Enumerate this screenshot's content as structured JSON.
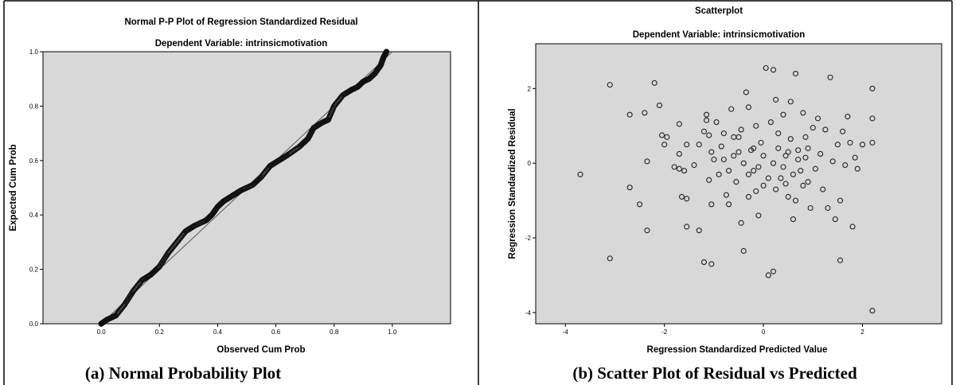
{
  "chart_data": [
    {
      "type": "line",
      "title": "Normal P-P Plot of Regression Standardized Residual",
      "subtitle": "Dependent Variable: intrinsicmotivation",
      "xlabel": "Observed Cum Prob",
      "ylabel": "Expected Cum Prob",
      "xlim": [
        -0.2,
        1.2
      ],
      "ylim": [
        0,
        1
      ],
      "x_ticks": [
        "0.0",
        "0.2",
        "0.4",
        "0.6",
        "0.8",
        "1.0"
      ],
      "y_ticks": [
        "0.0",
        "0.2",
        "0.4",
        "0.6",
        "0.8",
        "1.0"
      ],
      "reference_line": [
        [
          0,
          0
        ],
        [
          1,
          1
        ]
      ],
      "series": [
        {
          "points": [
            [
              0,
              0
            ],
            [
              0.02,
              0.015
            ],
            [
              0.05,
              0.03
            ],
            [
              0.08,
              0.07
            ],
            [
              0.11,
              0.12
            ],
            [
              0.14,
              0.16
            ],
            [
              0.17,
              0.18
            ],
            [
              0.2,
              0.21
            ],
            [
              0.23,
              0.26
            ],
            [
              0.26,
              0.3
            ],
            [
              0.29,
              0.34
            ],
            [
              0.32,
              0.36
            ],
            [
              0.36,
              0.38
            ],
            [
              0.38,
              0.4
            ],
            [
              0.4,
              0.43
            ],
            [
              0.42,
              0.45
            ],
            [
              0.45,
              0.47
            ],
            [
              0.48,
              0.49
            ],
            [
              0.52,
              0.51
            ],
            [
              0.55,
              0.54
            ],
            [
              0.58,
              0.58
            ],
            [
              0.61,
              0.6
            ],
            [
              0.64,
              0.62
            ],
            [
              0.68,
              0.65
            ],
            [
              0.71,
              0.68
            ],
            [
              0.73,
              0.72
            ],
            [
              0.76,
              0.74
            ],
            [
              0.78,
              0.75
            ],
            [
              0.8,
              0.8
            ],
            [
              0.83,
              0.84
            ],
            [
              0.86,
              0.86
            ],
            [
              0.88,
              0.87
            ],
            [
              0.9,
              0.89
            ],
            [
              0.92,
              0.9
            ],
            [
              0.94,
              0.92
            ],
            [
              0.96,
              0.95
            ],
            [
              0.97,
              0.98
            ],
            [
              0.98,
              1.0
            ]
          ]
        }
      ],
      "caption": "(a)  Normal Probability Plot"
    },
    {
      "type": "scatter",
      "title": "Scatterplot",
      "subtitle": "Dependent Variable: intrinsicmotivation",
      "xlabel": "Regression Standardized Predicted Value",
      "ylabel": "Regression Standardized Residual",
      "xlim": [
        -4.6,
        3.6
      ],
      "ylim": [
        -4.3,
        3.2
      ],
      "x_ticks": [
        -4,
        -2,
        0,
        2
      ],
      "y_ticks": [
        -4,
        -2,
        0,
        2
      ],
      "series": [
        {
          "points": [
            [
              -3.7,
              -0.3
            ],
            [
              -3.1,
              2.1
            ],
            [
              -3.1,
              -2.55
            ],
            [
              -2.7,
              1.3
            ],
            [
              -2.7,
              -0.65
            ],
            [
              -2.5,
              -1.1
            ],
            [
              -2.4,
              1.35
            ],
            [
              -2.35,
              0.05
            ],
            [
              -2.35,
              -1.8
            ],
            [
              -2.2,
              2.15
            ],
            [
              -2.1,
              1.55
            ],
            [
              -2.05,
              0.75
            ],
            [
              -2.0,
              0.5
            ],
            [
              -1.95,
              0.7
            ],
            [
              -1.8,
              -0.1
            ],
            [
              -1.7,
              -0.15
            ],
            [
              -1.6,
              -0.2
            ],
            [
              -1.7,
              1.05
            ],
            [
              -1.65,
              -0.9
            ],
            [
              -1.55,
              -0.95
            ],
            [
              -1.7,
              0.25
            ],
            [
              -1.55,
              0.5
            ],
            [
              -1.55,
              -1.7
            ],
            [
              -1.4,
              -0.05
            ],
            [
              -1.3,
              0.5
            ],
            [
              -1.2,
              0.85
            ],
            [
              -1.15,
              1.3
            ],
            [
              -1.15,
              1.15
            ],
            [
              -1.1,
              0.75
            ],
            [
              -1.05,
              0.3
            ],
            [
              -1.0,
              0.1
            ],
            [
              -1.1,
              -0.45
            ],
            [
              -1.05,
              -1.1
            ],
            [
              -1.3,
              -1.8
            ],
            [
              -1.2,
              -2.65
            ],
            [
              -1.05,
              -2.7
            ],
            [
              -0.95,
              1.1
            ],
            [
              -0.9,
              -0.3
            ],
            [
              -0.85,
              0.45
            ],
            [
              -0.8,
              0.1
            ],
            [
              -0.75,
              -0.85
            ],
            [
              -0.7,
              -1.1
            ],
            [
              -0.65,
              1.45
            ],
            [
              -0.6,
              0.2
            ],
            [
              -0.55,
              -0.5
            ],
            [
              -0.5,
              0.7
            ],
            [
              -0.45,
              -1.6
            ],
            [
              -0.4,
              -2.35
            ],
            [
              -0.35,
              1.9
            ],
            [
              -0.3,
              1.5
            ],
            [
              -0.3,
              -0.9
            ],
            [
              -0.25,
              0.35
            ],
            [
              -0.2,
              -0.2
            ],
            [
              -0.15,
              1.0
            ],
            [
              -0.1,
              -1.4
            ],
            [
              -0.05,
              0.55
            ],
            [
              0.0,
              -0.6
            ],
            [
              0.05,
              2.55
            ],
            [
              0.1,
              -3.0
            ],
            [
              0.2,
              -2.9
            ],
            [
              0.2,
              2.5
            ],
            [
              0.25,
              1.7
            ],
            [
              0.3,
              0.8
            ],
            [
              0.35,
              -0.4
            ],
            [
              0.4,
              1.3
            ],
            [
              0.45,
              0.2
            ],
            [
              0.5,
              -0.9
            ],
            [
              0.55,
              1.65
            ],
            [
              0.6,
              -1.5
            ],
            [
              0.65,
              2.4
            ],
            [
              0.7,
              0.35
            ],
            [
              0.75,
              -0.2
            ],
            [
              0.8,
              1.35
            ],
            [
              0.85,
              0.7
            ],
            [
              0.9,
              -0.5
            ],
            [
              0.95,
              -1.2
            ],
            [
              1.0,
              0.95
            ],
            [
              1.05,
              -0.15
            ],
            [
              1.1,
              1.2
            ],
            [
              1.15,
              0.25
            ],
            [
              1.2,
              -0.7
            ],
            [
              1.25,
              0.9
            ],
            [
              1.3,
              -1.2
            ],
            [
              1.35,
              2.3
            ],
            [
              1.4,
              0.05
            ],
            [
              1.45,
              -1.5
            ],
            [
              1.5,
              0.5
            ],
            [
              1.55,
              -1.0
            ],
            [
              1.6,
              0.85
            ],
            [
              1.55,
              -2.6
            ],
            [
              1.65,
              -0.05
            ],
            [
              1.7,
              1.25
            ],
            [
              1.75,
              0.55
            ],
            [
              1.8,
              -1.7
            ],
            [
              1.85,
              0.15
            ],
            [
              1.9,
              -0.15
            ],
            [
              2.0,
              0.5
            ],
            [
              2.2,
              2.0
            ],
            [
              2.2,
              1.2
            ],
            [
              2.2,
              0.55
            ],
            [
              2.2,
              -3.95
            ],
            [
              -0.6,
              0.7
            ],
            [
              -0.5,
              0.3
            ],
            [
              -0.4,
              0.0
            ],
            [
              -0.3,
              -0.3
            ],
            [
              -0.2,
              0.4
            ],
            [
              -0.1,
              -0.1
            ],
            [
              0.0,
              0.2
            ],
            [
              0.1,
              -0.4
            ],
            [
              0.2,
              0.0
            ],
            [
              0.3,
              0.4
            ],
            [
              0.4,
              -0.1
            ],
            [
              0.5,
              0.3
            ],
            [
              0.6,
              -0.3
            ],
            [
              0.7,
              0.1
            ],
            [
              0.8,
              -0.6
            ],
            [
              0.9,
              0.4
            ],
            [
              -0.7,
              -0.2
            ],
            [
              -0.8,
              0.8
            ],
            [
              0.25,
              -0.7
            ],
            [
              0.55,
              0.65
            ],
            [
              0.65,
              -1.0
            ],
            [
              -0.15,
              -0.75
            ],
            [
              0.85,
              0.15
            ],
            [
              -0.45,
              0.9
            ],
            [
              0.15,
              1.1
            ],
            [
              0.45,
              -0.55
            ]
          ]
        }
      ],
      "caption": "(b) Scatter Plot of Residual vs Predicted"
    }
  ]
}
